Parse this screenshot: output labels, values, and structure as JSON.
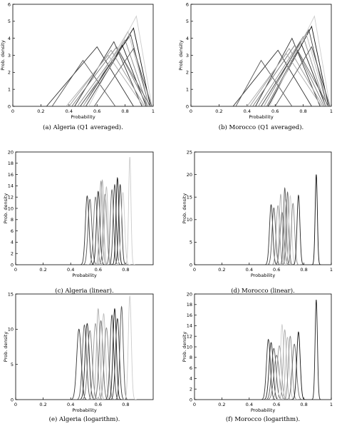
{
  "chart_data": [
    {
      "type": "line",
      "panel": "a",
      "caption": "(a)  Algeria (Q1 averaged).",
      "xlabel": "Probability",
      "ylabel": "Prob. density",
      "xlim": [
        0,
        1
      ],
      "ylim": [
        0,
        6
      ],
      "xticks": [
        "0",
        "0.2",
        "0.4",
        "0.6",
        "0.8",
        "1"
      ],
      "yticks": [
        "0",
        "1",
        "2",
        "3",
        "4",
        "5",
        "6"
      ],
      "grid": false,
      "distribution": "triangular",
      "series": [
        {
          "peak": 0.6,
          "lo": 0.24,
          "hi": 0.86,
          "height": 3.5,
          "color": "#333333"
        },
        {
          "peak": 0.5,
          "lo": 0.28,
          "hi": 0.73,
          "height": 2.7,
          "color": "#555555"
        },
        {
          "peak": 0.86,
          "lo": 0.52,
          "hi": 0.98,
          "height": 4.6,
          "color": "#111111"
        },
        {
          "peak": 0.84,
          "lo": 0.48,
          "hi": 0.97,
          "height": 4.2,
          "color": "#444444"
        },
        {
          "peak": 0.78,
          "lo": 0.5,
          "hi": 0.95,
          "height": 3.6,
          "color": "#222222"
        },
        {
          "peak": 0.72,
          "lo": 0.44,
          "hi": 0.92,
          "height": 3.8,
          "color": "#333333"
        },
        {
          "peak": 0.74,
          "lo": 0.42,
          "hi": 0.96,
          "height": 3.5,
          "color": "#777777"
        },
        {
          "peak": 0.8,
          "lo": 0.46,
          "hi": 0.96,
          "height": 3.9,
          "color": "#888888"
        },
        {
          "peak": 0.7,
          "lo": 0.4,
          "hi": 0.94,
          "height": 3.3,
          "color": "#999999"
        },
        {
          "peak": 0.88,
          "lo": 0.54,
          "hi": 0.99,
          "height": 5.3,
          "color": "#cccccc"
        },
        {
          "peak": 0.82,
          "lo": 0.5,
          "hi": 0.97,
          "height": 4.4,
          "color": "#bbbbbb"
        },
        {
          "peak": 0.68,
          "lo": 0.38,
          "hi": 0.93,
          "height": 3.0,
          "color": "#aaaaaa"
        },
        {
          "peak": 0.76,
          "lo": 0.52,
          "hi": 0.98,
          "height": 3.2,
          "color": "#666666"
        },
        {
          "peak": 0.86,
          "lo": 0.58,
          "hi": 0.99,
          "height": 3.4,
          "color": "#555555"
        }
      ]
    },
    {
      "type": "line",
      "panel": "b",
      "caption": "(b)  Morocco (Q1 averaged).",
      "xlabel": "Probability",
      "ylabel": "Prob. density",
      "xlim": [
        0,
        1
      ],
      "ylim": [
        0,
        6
      ],
      "xticks": [
        "0",
        "0.2",
        "0.4",
        "0.6",
        "0.8",
        "1"
      ],
      "yticks": [
        "0",
        "1",
        "2",
        "3",
        "4",
        "5",
        "6"
      ],
      "grid": false,
      "distribution": "triangular",
      "series": [
        {
          "peak": 0.62,
          "lo": 0.3,
          "hi": 0.86,
          "height": 3.3,
          "color": "#333333"
        },
        {
          "peak": 0.5,
          "lo": 0.32,
          "hi": 0.72,
          "height": 2.7,
          "color": "#555555"
        },
        {
          "peak": 0.86,
          "lo": 0.55,
          "hi": 0.98,
          "height": 4.7,
          "color": "#111111"
        },
        {
          "peak": 0.84,
          "lo": 0.5,
          "hi": 0.97,
          "height": 4.5,
          "color": "#444444"
        },
        {
          "peak": 0.78,
          "lo": 0.52,
          "hi": 0.96,
          "height": 3.8,
          "color": "#222222"
        },
        {
          "peak": 0.72,
          "lo": 0.46,
          "hi": 0.92,
          "height": 4.0,
          "color": "#333333"
        },
        {
          "peak": 0.74,
          "lo": 0.44,
          "hi": 0.95,
          "height": 3.6,
          "color": "#777777"
        },
        {
          "peak": 0.8,
          "lo": 0.48,
          "hi": 0.96,
          "height": 4.1,
          "color": "#888888"
        },
        {
          "peak": 0.7,
          "lo": 0.42,
          "hi": 0.94,
          "height": 3.4,
          "color": "#999999"
        },
        {
          "peak": 0.88,
          "lo": 0.56,
          "hi": 0.99,
          "height": 5.3,
          "color": "#cccccc"
        },
        {
          "peak": 0.82,
          "lo": 0.52,
          "hi": 0.97,
          "height": 4.3,
          "color": "#bbbbbb"
        },
        {
          "peak": 0.68,
          "lo": 0.4,
          "hi": 0.93,
          "height": 3.1,
          "color": "#aaaaaa"
        },
        {
          "peak": 0.76,
          "lo": 0.54,
          "hi": 0.98,
          "height": 3.3,
          "color": "#666666"
        },
        {
          "peak": 0.86,
          "lo": 0.6,
          "hi": 0.99,
          "height": 3.5,
          "color": "#555555"
        }
      ]
    },
    {
      "type": "line",
      "panel": "c",
      "caption": "(c)  Algeria (linear).",
      "xlabel": "Probability",
      "ylabel": "Prob. density",
      "xlim": [
        0,
        1
      ],
      "ylim": [
        0,
        20
      ],
      "xticks": [
        "0",
        "0.2",
        "0.4",
        "0.6",
        "0.8"
      ],
      "yticks": [
        "0",
        "2",
        "4",
        "6",
        "8",
        "10",
        "12",
        "14",
        "16",
        "18",
        "20"
      ],
      "grid": false,
      "distribution": "peaked",
      "series": [
        {
          "peak": 0.52,
          "height": 12.2,
          "color": "#333333"
        },
        {
          "peak": 0.54,
          "height": 11.6,
          "color": "#555555"
        },
        {
          "peak": 0.58,
          "height": 12.0,
          "color": "#777777"
        },
        {
          "peak": 0.6,
          "height": 13.0,
          "color": "#222222"
        },
        {
          "peak": 0.62,
          "height": 14.8,
          "color": "#999999"
        },
        {
          "peak": 0.63,
          "height": 15.0,
          "color": "#aaaaaa"
        },
        {
          "peak": 0.65,
          "height": 12.5,
          "color": "#888888"
        },
        {
          "peak": 0.66,
          "height": 13.8,
          "color": "#bbbbbb"
        },
        {
          "peak": 0.7,
          "height": 13.3,
          "color": "#666666"
        },
        {
          "peak": 0.72,
          "height": 14.2,
          "color": "#444444"
        },
        {
          "peak": 0.74,
          "height": 15.4,
          "color": "#111111"
        },
        {
          "peak": 0.76,
          "height": 14.2,
          "color": "#333333"
        },
        {
          "peak": 0.78,
          "height": 12.8,
          "color": "#cccccc"
        },
        {
          "peak": 0.83,
          "height": 19.1,
          "color": "#cccccc"
        }
      ]
    },
    {
      "type": "line",
      "panel": "d",
      "caption": "(d)  Morocco (linear).",
      "xlabel": "Probability",
      "ylabel": "Prob. density",
      "xlim": [
        0,
        1
      ],
      "ylim": [
        0,
        25
      ],
      "xticks": [
        "0",
        "0.2",
        "0.4",
        "0.6",
        "0.8",
        "1"
      ],
      "yticks": [
        "0",
        "5",
        "10",
        "15",
        "20",
        "25"
      ],
      "grid": false,
      "distribution": "peaked",
      "series": [
        {
          "peak": 0.56,
          "height": 13.3,
          "color": "#333333"
        },
        {
          "peak": 0.58,
          "height": 12.6,
          "color": "#555555"
        },
        {
          "peak": 0.61,
          "height": 13.1,
          "color": "#999999"
        },
        {
          "peak": 0.63,
          "height": 15.6,
          "color": "#aaaaaa"
        },
        {
          "peak": 0.64,
          "height": 11.6,
          "color": "#777777"
        },
        {
          "peak": 0.66,
          "height": 17.0,
          "color": "#555555"
        },
        {
          "peak": 0.67,
          "height": 14.4,
          "color": "#bbbbbb"
        },
        {
          "peak": 0.68,
          "height": 16.1,
          "color": "#666666"
        },
        {
          "peak": 0.7,
          "height": 15.3,
          "color": "#cccccc"
        },
        {
          "peak": 0.72,
          "height": 13.6,
          "color": "#888888"
        },
        {
          "peak": 0.76,
          "height": 15.4,
          "color": "#222222"
        },
        {
          "peak": 0.89,
          "height": 20.0,
          "color": "#111111"
        }
      ]
    },
    {
      "type": "line",
      "panel": "e",
      "caption": "(e)  Algeria (logarithm).",
      "xlabel": "Probability",
      "ylabel": "Prob. density",
      "xlim": [
        0,
        1
      ],
      "ylim": [
        0,
        15
      ],
      "xticks": [
        "0",
        "0.2",
        "0.4",
        "0.6",
        "0.8"
      ],
      "yticks": [
        "0",
        "5",
        "10",
        "15"
      ],
      "grid": false,
      "distribution": "peaked",
      "series": [
        {
          "peak": 0.46,
          "height": 10.0,
          "color": "#333333"
        },
        {
          "peak": 0.5,
          "height": 10.6,
          "color": "#555555"
        },
        {
          "peak": 0.52,
          "height": 10.8,
          "color": "#222222"
        },
        {
          "peak": 0.54,
          "height": 9.8,
          "color": "#777777"
        },
        {
          "peak": 0.58,
          "height": 10.8,
          "color": "#999999"
        },
        {
          "peak": 0.6,
          "height": 12.9,
          "color": "#aaaaaa"
        },
        {
          "peak": 0.62,
          "height": 11.2,
          "color": "#666666"
        },
        {
          "peak": 0.64,
          "height": 12.2,
          "color": "#bbbbbb"
        },
        {
          "peak": 0.66,
          "height": 10.2,
          "color": "#888888"
        },
        {
          "peak": 0.7,
          "height": 12.0,
          "color": "#444444"
        },
        {
          "peak": 0.72,
          "height": 12.9,
          "color": "#111111"
        },
        {
          "peak": 0.74,
          "height": 11.5,
          "color": "#333333"
        },
        {
          "peak": 0.77,
          "height": 13.2,
          "color": "#555555"
        },
        {
          "peak": 0.83,
          "height": 14.7,
          "color": "#cccccc"
        }
      ]
    },
    {
      "type": "line",
      "panel": "f",
      "caption": "(f)  Morocco (logarithm).",
      "xlabel": "Probability",
      "ylabel": "Prob. density",
      "xlim": [
        0,
        1
      ],
      "ylim": [
        0,
        20
      ],
      "xticks": [
        "0",
        "0.2",
        "0.4",
        "0.6",
        "0.8",
        "1"
      ],
      "yticks": [
        "0",
        "2",
        "4",
        "6",
        "8",
        "10",
        "12",
        "14",
        "16",
        "18",
        "20"
      ],
      "grid": false,
      "distribution": "peaked",
      "series": [
        {
          "peak": 0.54,
          "height": 11.4,
          "color": "#333333"
        },
        {
          "peak": 0.56,
          "height": 10.8,
          "color": "#222222"
        },
        {
          "peak": 0.58,
          "height": 9.7,
          "color": "#555555"
        },
        {
          "peak": 0.6,
          "height": 8.4,
          "color": "#777777"
        },
        {
          "peak": 0.62,
          "height": 10.2,
          "color": "#999999"
        },
        {
          "peak": 0.64,
          "height": 14.2,
          "color": "#cccccc"
        },
        {
          "peak": 0.66,
          "height": 13.2,
          "color": "#aaaaaa"
        },
        {
          "peak": 0.68,
          "height": 11.8,
          "color": "#bbbbbb"
        },
        {
          "peak": 0.7,
          "height": 12.0,
          "color": "#888888"
        },
        {
          "peak": 0.73,
          "height": 10.5,
          "color": "#666666"
        },
        {
          "peak": 0.76,
          "height": 12.8,
          "color": "#111111"
        },
        {
          "peak": 0.89,
          "height": 18.9,
          "color": "#222222"
        }
      ]
    }
  ]
}
